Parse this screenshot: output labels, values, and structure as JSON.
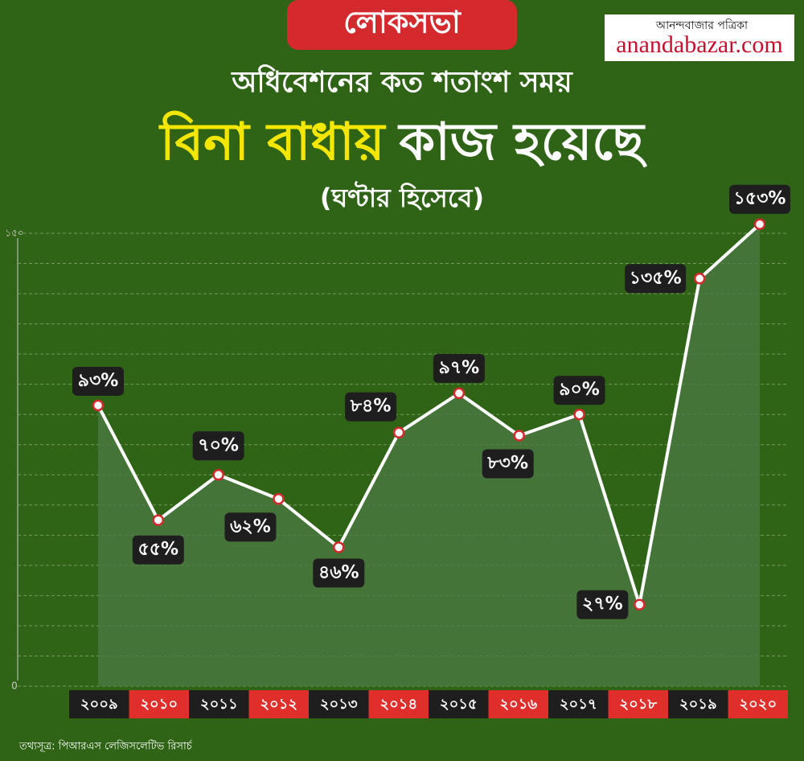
{
  "chart_data": {
    "type": "line",
    "badge": "লোকসভা",
    "title_line1": "অধিবেশনের কত শতাংশ সময়",
    "title_highlight": "বিনা বাধায়",
    "title_rest": "কাজ হয়েছে",
    "subtitle": "(ঘণ্টার হিসেবে)",
    "logo_bengali": "আনন্দবাজার পত্রিকা",
    "logo_latin": "anandabazar.com",
    "source": "তথ্যসূত্র: পিআরএস লেজিসলেটিভ রিসার্চ",
    "categories": [
      "২০০৯",
      "২০১০",
      "২০১১",
      "২০১২",
      "২০১৩",
      "২০১৪",
      "২০১৫",
      "২০১৬",
      "২০১৭",
      "২০১৮",
      "২০১৯",
      "২০২০"
    ],
    "values": [
      93,
      55,
      70,
      62,
      46,
      84,
      97,
      83,
      90,
      27,
      135,
      153
    ],
    "value_labels": [
      "৯৩%",
      "৫৫%",
      "৭০%",
      "৬২%",
      "৪৬%",
      "৮৪%",
      "৯৭%",
      "৮৩%",
      "৯০%",
      "২৭%",
      "১৩৫%",
      "১৫৩%"
    ],
    "color": "#ffffff",
    "ylim": [
      0,
      150
    ],
    "yticks": [
      0,
      {
        "value": 150,
        "label": "১৫০"
      }
    ],
    "minor_yticks": [
      10,
      20,
      30,
      40,
      50,
      60,
      70,
      80,
      90,
      100,
      110,
      120,
      130,
      140
    ],
    "grid": true
  }
}
